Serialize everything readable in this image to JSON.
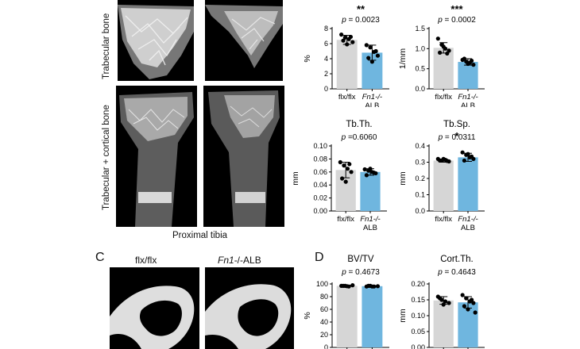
{
  "figure": {
    "side_label_top": "Trabecular bone",
    "side_label_bottom": "Trabecular + cortical bone",
    "bottom_caption": "Proximal tibia",
    "panel_c": {
      "letter": "C",
      "titles": [
        "flx/flx",
        "Fn1-/-ALB"
      ]
    },
    "panel_d": {
      "letter": "D"
    }
  },
  "colors": {
    "control": "#d6d6d6",
    "knockout": "#6fb6df",
    "point": "#000000"
  },
  "chart_data": [
    {
      "id": "bvtv-top",
      "type": "bar",
      "title": "",
      "sig": "**",
      "p": "p = 0.0023",
      "ylabel": "%",
      "ylim": [
        0,
        8
      ],
      "ticks": [
        "0",
        "2",
        "4",
        "6",
        "8"
      ],
      "tickvals": [
        0,
        2,
        4,
        6,
        8
      ],
      "categories": [
        "flx/flx",
        "Fn1-/-"
      ],
      "cat2": [
        "",
        "ALB"
      ],
      "values": [
        6.5,
        4.8
      ],
      "errors": [
        0.6,
        1.0
      ],
      "points": [
        [
          7.2,
          6.8,
          6.6,
          6.2,
          6.4,
          5.9,
          6.9
        ],
        [
          5.8,
          5.5,
          4.9,
          4.4,
          4.1,
          3.6,
          5.0
        ]
      ]
    },
    {
      "id": "tbn-top",
      "type": "bar",
      "title": "",
      "sig": "***",
      "p": "p = 0.0002",
      "ylabel": "1/mm",
      "ylim": [
        0,
        1.5
      ],
      "ticks": [
        "0.0",
        "0.5",
        "1.0",
        "1.5"
      ],
      "tickvals": [
        0,
        0.5,
        1,
        1.5
      ],
      "categories": [
        "flx/flx",
        "Fn1-/-"
      ],
      "cat2": [
        "",
        "ALB"
      ],
      "values": [
        1.02,
        0.67
      ],
      "errors": [
        0.13,
        0.08
      ],
      "points": [
        [
          1.25,
          1.1,
          1.0,
          0.95,
          0.9,
          1.05,
          0.88
        ],
        [
          0.72,
          0.68,
          0.65,
          0.6,
          0.75,
          0.62,
          0.7
        ]
      ]
    },
    {
      "id": "tbth",
      "type": "bar",
      "title": "Tb.Th.",
      "sig": "",
      "p": "p =0.6060",
      "ylabel": "mm",
      "ylim": [
        0,
        0.1
      ],
      "ticks": [
        "0.00",
        "0.02",
        "0.04",
        "0.06",
        "0.08",
        "0.10"
      ],
      "tickvals": [
        0,
        0.02,
        0.04,
        0.06,
        0.08,
        0.1
      ],
      "categories": [
        "flx/flx",
        "Fn1-/-"
      ],
      "cat2": [
        "",
        "ALB"
      ],
      "values": [
        0.063,
        0.06
      ],
      "errors": [
        0.012,
        0.005
      ],
      "points": [
        [
          0.075,
          0.07,
          0.065,
          0.06,
          0.05,
          0.045,
          0.072
        ],
        [
          0.064,
          0.062,
          0.06,
          0.058,
          0.055,
          0.065,
          0.059
        ]
      ]
    },
    {
      "id": "tbsp",
      "type": "bar",
      "title": "Tb.Sp.",
      "sig": "*",
      "p": "p = 0.0311",
      "ylabel": "mm",
      "ylim": [
        0,
        0.4
      ],
      "ticks": [
        "0.0",
        "0.1",
        "0.2",
        "0.3",
        "0.4"
      ],
      "tickvals": [
        0,
        0.1,
        0.2,
        0.3,
        0.4
      ],
      "categories": [
        "flx/flx",
        "Fn1-/-"
      ],
      "cat2": [
        "",
        "ALB"
      ],
      "values": [
        0.31,
        0.33
      ],
      "errors": [
        0.01,
        0.025
      ],
      "points": [
        [
          0.32,
          0.31,
          0.315,
          0.305,
          0.31,
          0.32,
          0.308
        ],
        [
          0.36,
          0.345,
          0.33,
          0.32,
          0.31,
          0.35,
          0.335
        ]
      ]
    },
    {
      "id": "bvtv-d",
      "type": "bar",
      "title": "BV/TV",
      "sig": "",
      "p": "p = 0.4673",
      "ylabel": "%",
      "ylim": [
        0,
        100
      ],
      "ticks": [
        "0",
        "20",
        "40",
        "60",
        "80",
        "100"
      ],
      "tickvals": [
        0,
        20,
        40,
        60,
        80,
        100
      ],
      "categories": [
        "",
        ""
      ],
      "cat2": [
        "",
        ""
      ],
      "values": [
        97,
        96.5
      ],
      "errors": [
        1,
        1
      ],
      "points": [
        [
          97,
          97,
          96,
          98,
          97,
          96.5
        ],
        [
          96,
          97,
          96,
          96.5,
          97,
          96
        ]
      ]
    },
    {
      "id": "cortth",
      "type": "bar",
      "title": "Cort.Th.",
      "sig": "",
      "p": "p = 0.4643",
      "ylabel": "mm",
      "ylim": [
        0,
        0.2
      ],
      "ticks": [
        "0.00",
        "0.05",
        "0.10",
        "0.15",
        "0.20"
      ],
      "tickvals": [
        0,
        0.05,
        0.1,
        0.15,
        0.2
      ],
      "categories": [
        "",
        ""
      ],
      "cat2": [
        "",
        ""
      ],
      "values": [
        0.148,
        0.142
      ],
      "errors": [
        0.012,
        0.018
      ],
      "points": [
        [
          0.16,
          0.15,
          0.145,
          0.14,
          0.155,
          0.135
        ],
        [
          0.165,
          0.155,
          0.145,
          0.14,
          0.13,
          0.12,
          0.15,
          0.11
        ]
      ]
    }
  ]
}
